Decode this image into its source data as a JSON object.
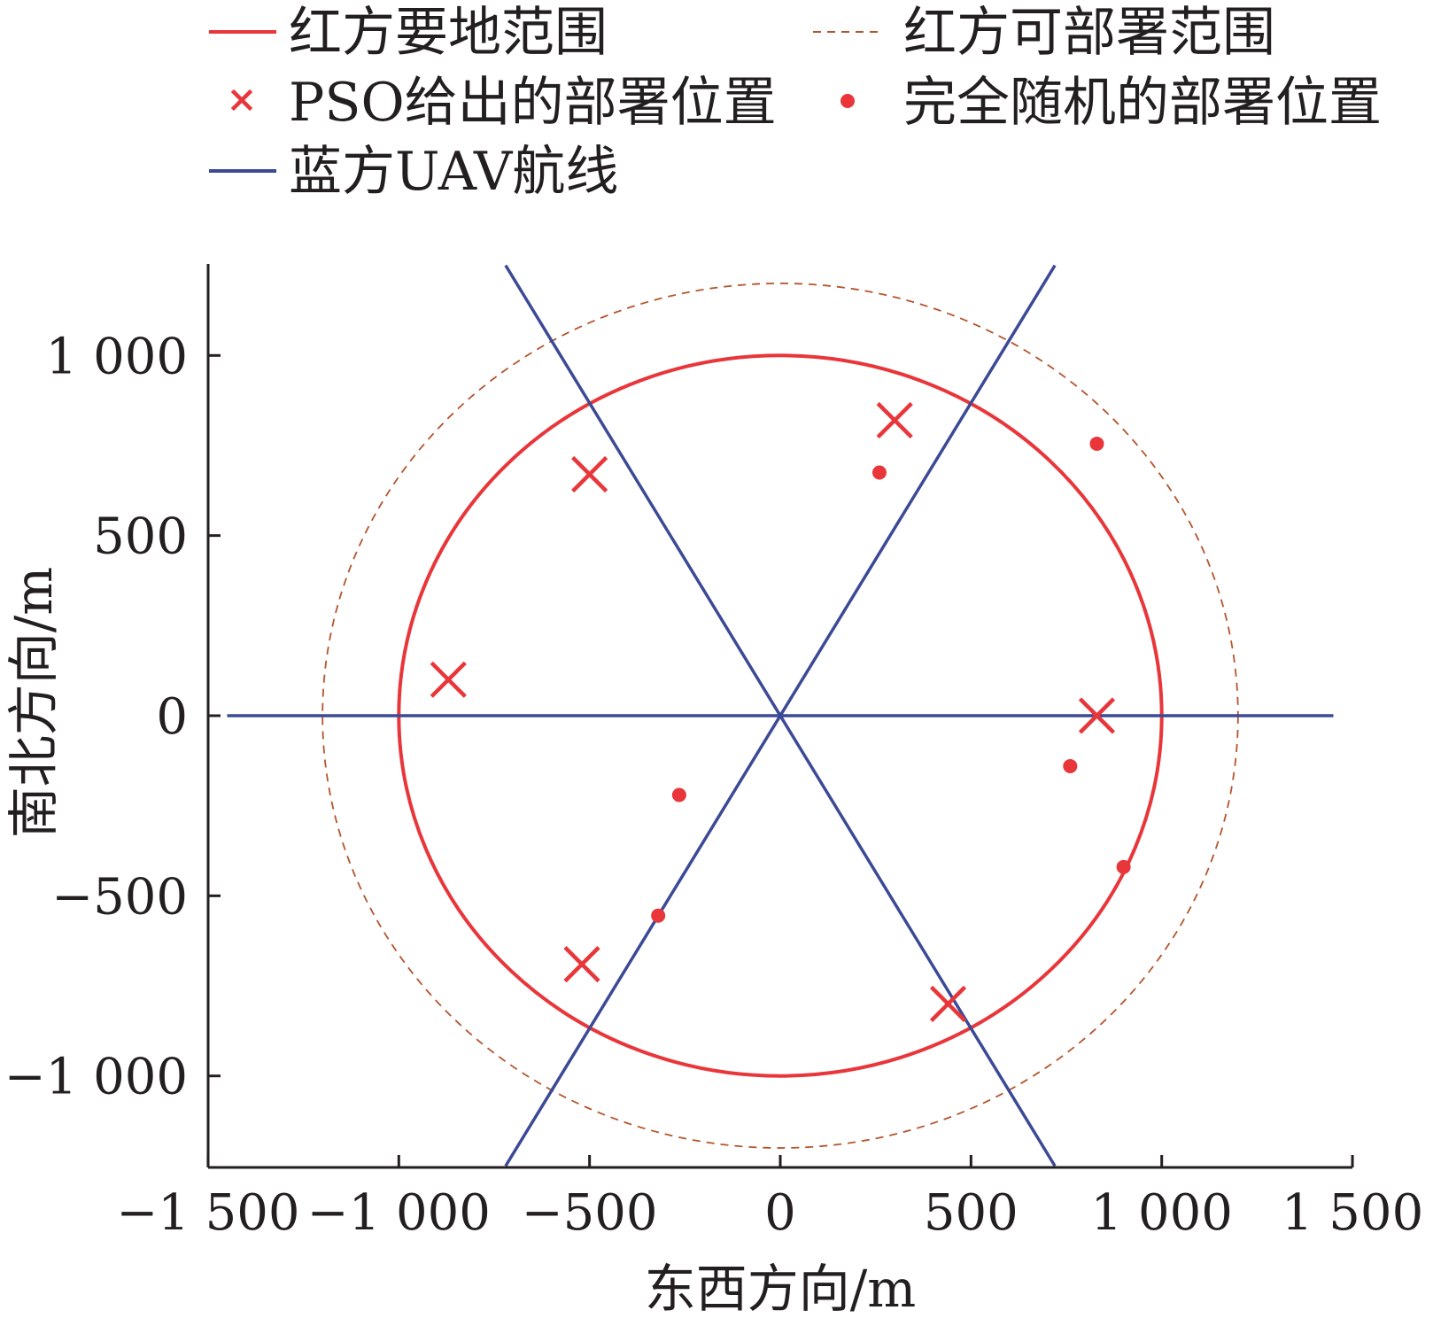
{
  "chart_data": {
    "type": "scatter",
    "title": "",
    "xlabel": "东西方向/m",
    "ylabel": "南北方向/m",
    "xlim": [
      -1500,
      1500
    ],
    "ylim": [
      -1250,
      1250
    ],
    "x_ticks": [
      -1500,
      -1000,
      -500,
      0,
      500,
      1000,
      1500
    ],
    "x_tick_labels": [
      "−1 500",
      "−1 000",
      "−500",
      "0",
      "500",
      "1 000",
      "1 500"
    ],
    "y_ticks": [
      -1000,
      -500,
      0,
      500,
      1000
    ],
    "y_tick_labels": [
      "−1 000",
      "−500",
      "0",
      "500",
      "1 000"
    ],
    "grid": false,
    "legend_position": "top",
    "colors": {
      "red": "#e8363a",
      "brown_dashed": "#b5552d",
      "blue": "#3c4a96",
      "axis": "#231f20"
    },
    "series": [
      {
        "name": "红方要地范围",
        "kind": "circle",
        "center": [
          0,
          0
        ],
        "radius": 1000,
        "style": "solid",
        "color": "#e8363a"
      },
      {
        "name": "红方可部署范围",
        "kind": "circle",
        "center": [
          0,
          0
        ],
        "radius": 1200,
        "style": "dashed",
        "color": "#b5552d"
      },
      {
        "name": "PSO给出的部署位置",
        "kind": "points",
        "marker": "x",
        "color": "#e8363a",
        "points": [
          [
            -500,
            670
          ],
          [
            300,
            820
          ],
          [
            -870,
            100
          ],
          [
            830,
            0
          ],
          [
            -520,
            -690
          ],
          [
            440,
            -800
          ]
        ]
      },
      {
        "name": "完全随机的部署位置",
        "kind": "points",
        "marker": "dot",
        "color": "#e8363a",
        "points": [
          [
            260,
            675
          ],
          [
            830,
            755
          ],
          [
            -265,
            -220
          ],
          [
            760,
            -140
          ],
          [
            -320,
            -555
          ],
          [
            900,
            -420
          ]
        ]
      },
      {
        "name": "蓝方UAV航线",
        "kind": "lines",
        "color": "#3c4a96",
        "lines": [
          [
            [
              -1450,
              0
            ],
            [
              1450,
              0
            ]
          ],
          [
            [
              -720,
              1250
            ],
            [
              720,
              -1250
            ]
          ],
          [
            [
              -720,
              -1250
            ],
            [
              720,
              1250
            ]
          ]
        ]
      }
    ]
  }
}
